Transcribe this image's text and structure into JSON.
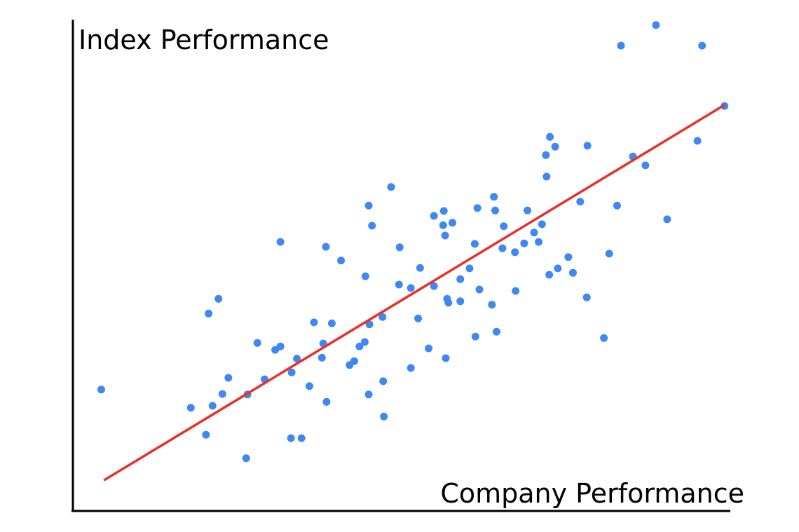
{
  "chart_data": {
    "type": "scatter",
    "y_label": "Index Performance",
    "x_label": "Company Performance",
    "xlim": [
      0,
      100
    ],
    "ylim": [
      0,
      100
    ],
    "color": "#3f88f2",
    "x": [
      4.3,
      17.9,
      20.2,
      20.6,
      21.2,
      22.1,
      22.7,
      23.6,
      26.3,
      26.5,
      28.0,
      29.1,
      30.7,
      31.5,
      31.5,
      33.1,
      33.2,
      34.0,
      34.7,
      35.9,
      36.6,
      37.8,
      38.0,
      38.4,
      38.5,
      39.3,
      40.7,
      42.0,
      42.7,
      43.5,
      44.3,
      44.4,
      44.9,
      44.9,
      45.0,
      45.4,
      47.0,
      47.1,
      47.2,
      48.3,
      49.5,
      49.6,
      51.3,
      51.3,
      52.4,
      52.7,
      54.0,
      54.8,
      54.8,
      56.3,
      56.2,
      56.5,
      56.6,
      56.8,
      57.0,
      57.6,
      58.8,
      58.8,
      60.2,
      61.0,
      61.1,
      61.4,
      61.7,
      63.6,
      63.9,
      64.1,
      64.3,
      65.2,
      65.4,
      67.1,
      67.2,
      68.5,
      69.0,
      70.0,
      70.7,
      71.2,
      71.8,
      71.9,
      72.4,
      72.3,
      73.2,
      73.6,
      75.2,
      75.9,
      77.0,
      78.1,
      78.0,
      80.6,
      81.4,
      82.6,
      83.2,
      85.0,
      86.9,
      88.5,
      90.2,
      94.8,
      95.5,
      98.9
    ],
    "y": [
      24.6,
      20.9,
      15.4,
      40.1,
      21.3,
      43.1,
      23.7,
      27.0,
      10.6,
      23.6,
      34.1,
      26.7,
      32.7,
      33.4,
      54.7,
      14.7,
      28.1,
      30.9,
      14.7,
      25.3,
      38.3,
      31.1,
      34.0,
      53.7,
      22.1,
      38.1,
      50.9,
      29.6,
      30.4,
      33.4,
      34.3,
      47.7,
      62.1,
      23.6,
      37.9,
      58.0,
      39.4,
      26.3,
      19.1,
      65.9,
      46.0,
      53.6,
      29.0,
      45.3,
      39.1,
      49.4,
      33.0,
      45.7,
      60.0,
      61.0,
      58.1,
      56.0,
      31.0,
      43.1,
      42.3,
      58.6,
      42.6,
      47.1,
      49.3,
      54.3,
      35.4,
      61.6,
      45.0,
      41.9,
      63.9,
      61.1,
      36.4,
      53.4,
      57.9,
      52.6,
      44.7,
      54.4,
      61.1,
      56.6,
      54.7,
      58.3,
      72.4,
      68.0,
      76.1,
      48.0,
      74.1,
      49.3,
      51.6,
      48.4,
      62.9,
      74.3,
      43.4,
      35.1,
      52.3,
      62.1,
      94.7,
      72.1,
      70.3,
      98.9,
      59.3,
      75.3,
      94.7,
      82.4
    ],
    "trend_line": {
      "x": [
        4.7,
        98.9
      ],
      "y": [
        6.1,
        82.6
      ],
      "color": "#e8302a"
    }
  }
}
